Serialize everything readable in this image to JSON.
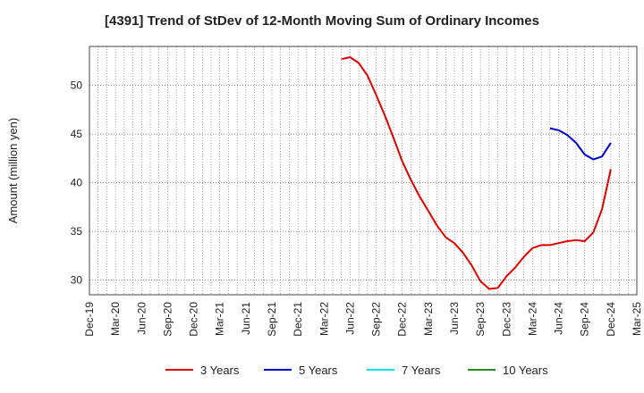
{
  "chart_data": {
    "type": "line",
    "title": "[4391]  Trend of StDev of 12-Month Moving Sum of Ordinary Incomes",
    "ylabel": "Amount (million yen)",
    "xlabel": "",
    "ylim": [
      28.5,
      54
    ],
    "yticks": [
      30,
      35,
      40,
      45,
      50
    ],
    "x_range": [
      "2019-12",
      "2025-03"
    ],
    "xticks": [
      "Dec-19",
      "Mar-20",
      "Jun-20",
      "Sep-20",
      "Dec-20",
      "Mar-21",
      "Jun-21",
      "Sep-21",
      "Dec-21",
      "Mar-22",
      "Jun-22",
      "Sep-22",
      "Dec-22",
      "Mar-23",
      "Jun-23",
      "Sep-23",
      "Dec-23",
      "Mar-24",
      "Jun-24",
      "Sep-24",
      "Dec-24",
      "Mar-25"
    ],
    "grid": true,
    "legend_position": "bottom",
    "series": [
      {
        "name": "3 Years",
        "color": "#dd0000",
        "x": [
          "2022-05",
          "2022-06",
          "2022-07",
          "2022-08",
          "2022-09",
          "2022-10",
          "2022-11",
          "2022-12",
          "2023-01",
          "2023-02",
          "2023-03",
          "2023-04",
          "2023-05",
          "2023-06",
          "2023-07",
          "2023-08",
          "2023-09",
          "2023-10",
          "2023-11",
          "2023-12",
          "2024-01",
          "2024-02",
          "2024-03",
          "2024-04",
          "2024-05",
          "2024-06",
          "2024-07",
          "2024-08",
          "2024-09",
          "2024-10",
          "2024-11",
          "2024-12"
        ],
        "y": [
          52.7,
          52.9,
          52.3,
          51.0,
          49.0,
          46.9,
          44.6,
          42.2,
          40.3,
          38.6,
          37.1,
          35.6,
          34.4,
          33.8,
          32.8,
          31.5,
          29.9,
          29.1,
          29.2,
          30.4,
          31.3,
          32.4,
          33.3,
          33.6,
          33.6,
          33.8,
          34.0,
          34.1,
          34.0,
          34.9,
          37.3,
          41.4
        ]
      },
      {
        "name": "5 Years",
        "color": "#0000cc",
        "x": [
          "2024-05",
          "2024-06",
          "2024-07",
          "2024-08",
          "2024-09",
          "2024-10",
          "2024-11",
          "2024-12"
        ],
        "y": [
          45.6,
          45.4,
          44.9,
          44.1,
          42.9,
          42.4,
          42.7,
          44.1
        ]
      },
      {
        "name": "7 Years",
        "color": "#00e5ee",
        "x": [],
        "y": []
      },
      {
        "name": "10 Years",
        "color": "#228b22",
        "x": [],
        "y": []
      }
    ]
  }
}
